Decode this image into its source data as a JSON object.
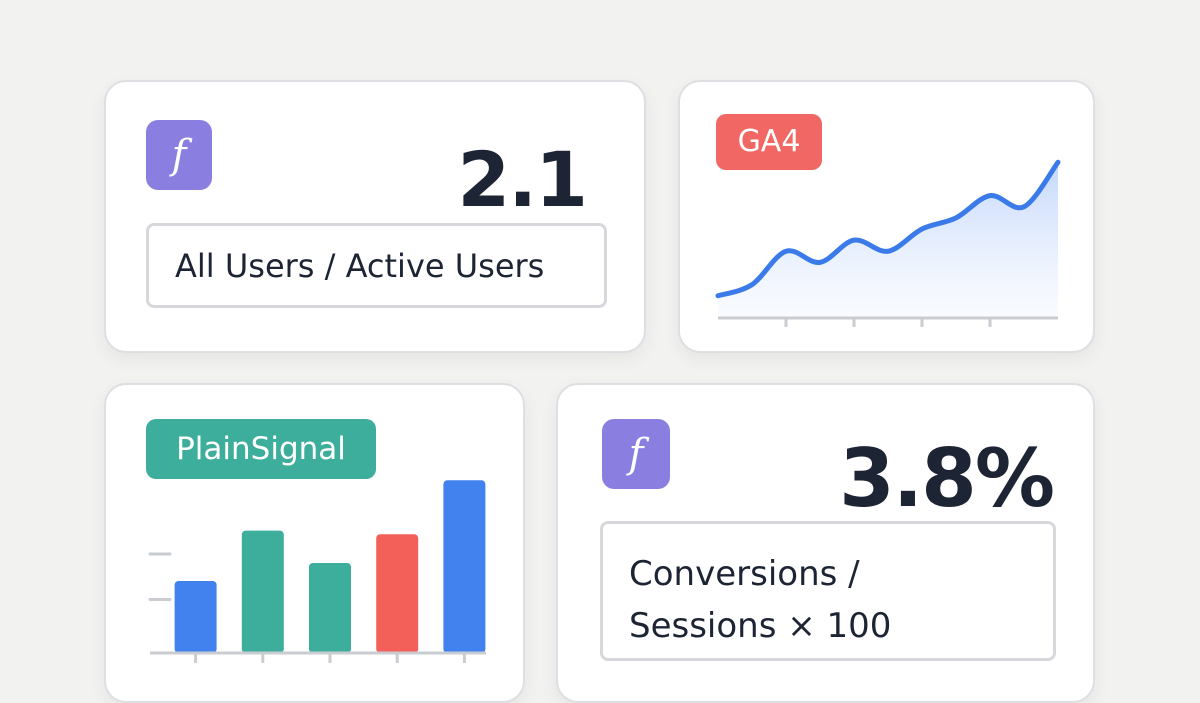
{
  "cards": {
    "users": {
      "badge_glyph": "f",
      "value": "2.1",
      "formula": "All Users / Active Users"
    },
    "ga4": {
      "tag_label": "GA4"
    },
    "plainsignal": {
      "tag_label": "PlainSignal"
    },
    "conversions": {
      "badge_glyph": "f",
      "value": "3.8%",
      "formula_line1": "Conversions /",
      "formula_line2": "Sessions × 100"
    }
  },
  "colors": {
    "badge_purple": "#8a7fe0",
    "ga4_red": "#f06763",
    "plainsignal_teal": "#3dae9b",
    "line_blue": "#3a7be9",
    "bar_blue": "#4182ee",
    "bar_teal": "#3dae9b",
    "bar_red": "#f3605a"
  },
  "icons": {
    "function_badge": "function-icon"
  },
  "chart_data": [
    {
      "type": "area",
      "title": "",
      "xlabel": "",
      "ylabel": "",
      "x": [
        0,
        1,
        2,
        3,
        4,
        5,
        6,
        7,
        8,
        9,
        10
      ],
      "series": [
        {
          "values": [
            2,
            3,
            6,
            5,
            7,
            6,
            8,
            9,
            11,
            10,
            14
          ]
        }
      ],
      "ylim": [
        0,
        16
      ],
      "grid": false
    },
    {
      "type": "bar",
      "title": "",
      "xlabel": "",
      "ylabel": "",
      "categories": [
        "",
        "",
        "",
        "",
        ""
      ],
      "values": [
        40,
        68,
        50,
        66,
        96
      ],
      "bar_colors": [
        "#4182ee",
        "#3dae9b",
        "#3dae9b",
        "#f3605a",
        "#4182ee"
      ],
      "ylim": [
        0,
        110
      ],
      "grid": false
    }
  ]
}
